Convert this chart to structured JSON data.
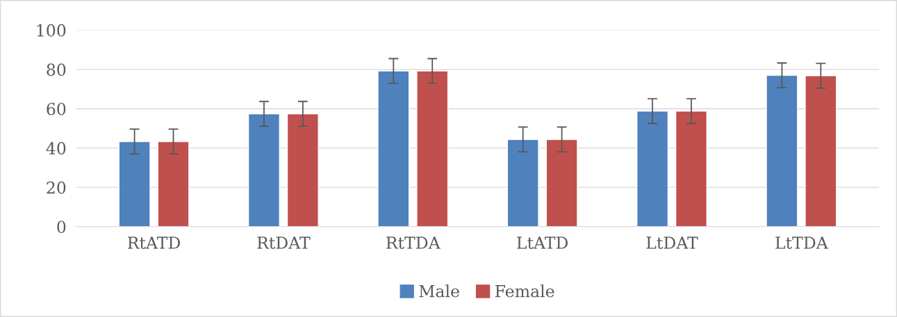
{
  "chart_data": {
    "type": "bar",
    "categories": [
      "RtATD",
      "RtDAT",
      "RtTDA",
      "LtATD",
      "LtDAT",
      "LtTDA"
    ],
    "series": [
      {
        "name": "Male",
        "color": "#4f81bd",
        "values": [
          43.3,
          57.4,
          79.2,
          44.4,
          58.8,
          77.0
        ],
        "errors": [
          6.3,
          6.3,
          6.3,
          6.3,
          6.3,
          6.3
        ]
      },
      {
        "name": "Female",
        "color": "#c0504d",
        "values": [
          43.3,
          57.4,
          79.2,
          44.4,
          58.8,
          76.8
        ],
        "errors": [
          6.3,
          6.3,
          6.3,
          6.3,
          6.3,
          6.3
        ]
      }
    ],
    "ylim": [
      0,
      100
    ],
    "yticks": [
      0,
      20,
      40,
      60,
      80,
      100
    ],
    "grid": "y",
    "legend": "bottom"
  }
}
